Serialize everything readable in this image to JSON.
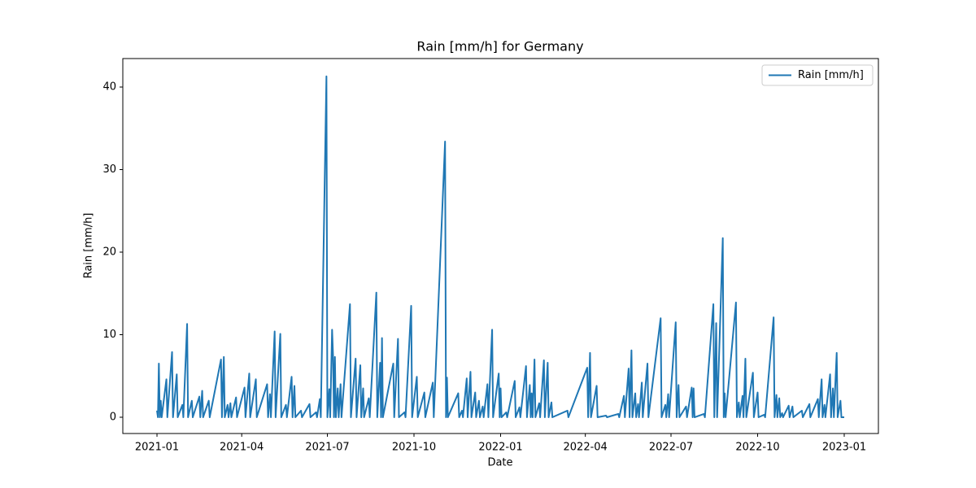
{
  "chart_data": {
    "type": "line",
    "title": "Rain [mm/h] for Germany",
    "xlabel": "Date",
    "ylabel": "Rain [mm/h]",
    "x": [
      0,
      1,
      2,
      3,
      4,
      5,
      10,
      11,
      16,
      17,
      21,
      22,
      27,
      28,
      32,
      33,
      37,
      38,
      45,
      46,
      48,
      49,
      55,
      56,
      68,
      69,
      71,
      72,
      75,
      76,
      78,
      79,
      84,
      85,
      93,
      94,
      98,
      99,
      105,
      106,
      117,
      118,
      120,
      121,
      125,
      126,
      131,
      132,
      137,
      138,
      143,
      144,
      146,
      147,
      153,
      154,
      162,
      163,
      169,
      170,
      173,
      174,
      180,
      181,
      183,
      184,
      186,
      187,
      188,
      189,
      190,
      192,
      193,
      195,
      196,
      205,
      206,
      211,
      212,
      216,
      217,
      219,
      220,
      225,
      226,
      233,
      234,
      237,
      238,
      239,
      240,
      251,
      252,
      256,
      257,
      263,
      264,
      270,
      271,
      276,
      277,
      284,
      285,
      293,
      294,
      306,
      307,
      308,
      309,
      320,
      321,
      324,
      325,
      329,
      330,
      333,
      334,
      338,
      339,
      342,
      343,
      346,
      347,
      351,
      352,
      356,
      357,
      363,
      364,
      365,
      366,
      371,
      372,
      380,
      381,
      385,
      386,
      392,
      393,
      396,
      397,
      398,
      399,
      401,
      402,
      406,
      407,
      411,
      412,
      415,
      416,
      419,
      420,
      436,
      437,
      457,
      458,
      460,
      461,
      467,
      468,
      477,
      478,
      490,
      491,
      496,
      497,
      501,
      502,
      504,
      505,
      508,
      509,
      511,
      512,
      515,
      516,
      521,
      522,
      535,
      536,
      540,
      541,
      543,
      544,
      551,
      552,
      554,
      555,
      562,
      563,
      568,
      569,
      570,
      571,
      581,
      582,
      591,
      592,
      594,
      595,
      601,
      602,
      603,
      604,
      615,
      616,
      618,
      619,
      622,
      623,
      625,
      626,
      633,
      634,
      638,
      639,
      645,
      646,
      655,
      656,
      658,
      659,
      661,
      662,
      664,
      665,
      671,
      672,
      675,
      676,
      685,
      686,
      693,
      694,
      702,
      703,
      706,
      707,
      709,
      710,
      715,
      716,
      718,
      719,
      722,
      723,
      726,
      727,
      730
    ],
    "series": [
      {
        "name": "Rain [mm/h]",
        "color": "#1f77b4",
        "values": [
          0.8,
          0,
          6.5,
          0,
          2,
          0,
          4.6,
          0,
          7.9,
          0,
          5.2,
          0,
          1.5,
          0,
          11.3,
          0,
          2,
          0,
          2.5,
          0,
          3.2,
          0,
          2,
          0,
          7,
          0,
          7.3,
          0,
          1.5,
          0,
          1.7,
          0,
          2.4,
          0,
          3.6,
          0,
          5.3,
          0,
          4.6,
          0,
          4,
          0,
          2.8,
          0,
          10.4,
          0,
          10.1,
          0,
          1.5,
          0,
          4.9,
          0,
          3.8,
          0,
          0.8,
          0,
          1.6,
          0,
          0.6,
          0,
          2.2,
          0,
          41.3,
          0,
          3.4,
          0,
          10.6,
          7.5,
          0,
          7.3,
          0,
          3.5,
          0,
          4,
          0,
          13.7,
          0,
          7.1,
          0,
          6.3,
          0,
          3.5,
          0,
          2.3,
          0,
          15.1,
          0,
          6.6,
          0,
          9.6,
          0,
          6.5,
          0,
          9.5,
          0,
          0.6,
          0,
          13.5,
          0,
          4.9,
          0,
          3,
          0,
          4.2,
          0,
          33.4,
          0,
          4.8,
          0,
          2.9,
          0,
          0.8,
          0,
          4.7,
          0,
          5.5,
          0,
          3,
          0,
          2,
          0,
          1.3,
          0,
          4,
          0,
          10.6,
          0,
          5.3,
          0,
          3.5,
          0,
          0.6,
          0,
          4.4,
          0,
          1.2,
          0,
          6.2,
          0,
          3.9,
          0,
          2.9,
          0,
          7,
          0,
          1.7,
          0,
          6.9,
          0,
          6.6,
          0,
          1.8,
          0,
          0.8,
          0,
          6,
          0,
          7.8,
          0,
          3.8,
          0,
          0.2,
          0,
          0.4,
          0,
          2.6,
          0,
          5.9,
          0,
          8.1,
          0,
          2.9,
          0,
          1.6,
          0,
          4.2,
          0,
          6.5,
          0,
          12,
          0,
          1.5,
          0,
          2.8,
          0,
          11.5,
          0,
          3.9,
          0,
          1.3,
          0,
          3.6,
          0,
          3.5,
          0,
          0.4,
          0,
          13.7,
          0,
          11.4,
          0,
          21.7,
          0,
          2.9,
          0,
          13.9,
          0,
          1.8,
          0,
          2.6,
          0,
          7.1,
          0,
          5.4,
          0,
          3,
          0,
          0.3,
          0,
          12.1,
          0,
          2.7,
          0,
          2.3,
          0,
          0.5,
          0,
          1.4,
          0,
          1.3,
          0,
          0.8,
          0,
          1.6,
          0,
          2.2,
          0,
          4.6,
          0,
          1.5,
          0,
          5.2,
          0,
          3.5,
          0,
          7.8,
          0,
          2,
          0,
          0
        ]
      }
    ],
    "xlim": [
      -36.3,
      766.3
    ],
    "ylim": [
      -1.97,
      43.45
    ],
    "xticks": [
      {
        "value": 0,
        "label": "2021-01"
      },
      {
        "value": 90,
        "label": "2021-04"
      },
      {
        "value": 181,
        "label": "2021-07"
      },
      {
        "value": 273,
        "label": "2021-10"
      },
      {
        "value": 365,
        "label": "2022-01"
      },
      {
        "value": 455,
        "label": "2022-04"
      },
      {
        "value": 546,
        "label": "2022-07"
      },
      {
        "value": 638,
        "label": "2022-10"
      },
      {
        "value": 730,
        "label": "2023-01"
      }
    ],
    "yticks": [
      0,
      10,
      20,
      30,
      40
    ],
    "legend": "upper right"
  }
}
